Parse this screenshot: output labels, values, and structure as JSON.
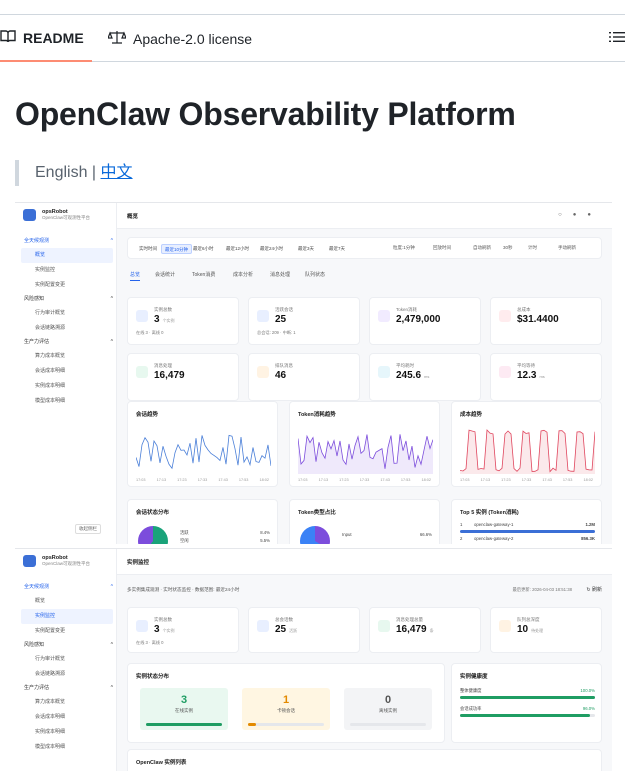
{
  "tabs": {
    "readme": "README",
    "license": "Apache-2.0 license"
  },
  "title": "OpenClaw Observability Platform",
  "lang": {
    "english": "English |",
    "chinese": "中文"
  },
  "app": {
    "logo_name": "opsRobot",
    "logo_sub": "OpenClaw可观测性平台",
    "nav": {
      "group1": "全天候观测",
      "item_overview": "概览",
      "item_instance": "实例监控",
      "item_config": "实例配置变更",
      "group2": "风险感知",
      "item_audit": "行为审计概览",
      "item_session_trace": "会话链路溯源",
      "group3": "生产力评估",
      "item_cost_overview": "算力成本概览",
      "item_session_cost": "会话成本明细",
      "item_instance_cost": "实例成本明细",
      "item_model_cost": "模型成本明细",
      "collapse": "收起侧栏"
    },
    "screen1": {
      "page_title": "概览",
      "time_buttons": [
        "实时时间",
        "最近10分钟",
        "最近6小时",
        "最近12小时",
        "最近24小时",
        "最近3天",
        "最近7天"
      ],
      "time_right": [
        "粒度:1分钟",
        "回放时间",
        "自动刷新",
        "30秒",
        "计时",
        "手动刷新"
      ],
      "subtabs": [
        "总览",
        "会话统计",
        "Token消费",
        "成本分析",
        "消息处理",
        "队列状态"
      ],
      "kpis": [
        {
          "label": "实例总数",
          "value": "3",
          "unit": "个实例",
          "sub": "在线 3 · 离线 0",
          "color": "#e8efff"
        },
        {
          "label": "活跃会话",
          "value": "25",
          "unit": "",
          "sub": "总会话: 209 · 中断: 1",
          "color": "#e8efff"
        },
        {
          "label": "Token消耗",
          "value": "2,479,000",
          "unit": "",
          "sub": "",
          "color": "#f1ebff"
        },
        {
          "label": "总成本",
          "value": "$31.4400",
          "unit": "",
          "sub": "",
          "color": "#ffecee"
        },
        {
          "label": "消息处理",
          "value": "16,479",
          "unit": "",
          "sub": "",
          "color": "#e7f8ef"
        },
        {
          "label": "排队消息",
          "value": "46",
          "unit": "",
          "sub": "",
          "color": "#fff3e3"
        },
        {
          "label": "平均耗时",
          "value": "245.6",
          "unit": "ms",
          "sub": "",
          "color": "#e6f6fb"
        },
        {
          "label": "平均等待",
          "value": "12.3",
          "unit": "ms",
          "sub": "",
          "color": "#fdeaf3"
        }
      ],
      "charts": [
        {
          "title": "会话趋势",
          "color": "#4a7fd8"
        },
        {
          "title": "Token消耗趋势",
          "color": "#7c4ddc"
        },
        {
          "title": "成本趋势",
          "color": "#e0465e"
        }
      ],
      "x_ticks": [
        "17:03",
        "17:13",
        "17:23",
        "17:33",
        "17:43",
        "17:53",
        "18:02"
      ],
      "bottom": {
        "status_title": "会话状态分布",
        "status_legend": [
          {
            "label": "活跃",
            "pct": "8.4%"
          },
          {
            "label": "空闲",
            "pct": "5.5%"
          }
        ],
        "token_title": "Token类型占比",
        "token_legend": [
          {
            "label": "Input",
            "pct": "66.6%"
          }
        ],
        "top5_title": "Top 5 实例 (Token消耗)",
        "top5": [
          {
            "rank": "1",
            "name": "openclaw-gateway-1",
            "value": "1.2M"
          },
          {
            "rank": "2",
            "name": "openclaw-gateway-2",
            "value": "856.3K"
          }
        ]
      }
    },
    "screen2": {
      "page_title": "实例监控",
      "desc": "多实例集成观测 · 实时状态监控 · 数据范围: 最近24小时",
      "updated": "最后更新: 2026-04-03 18:51:38",
      "refresh": "刷新",
      "kpis": [
        {
          "label": "实例总数",
          "value": "3",
          "unit": "个实例",
          "sub": "在线 3 · 离线 0",
          "color": "#e8efff"
        },
        {
          "label": "总会话数",
          "value": "25",
          "unit": "活跃",
          "sub": "",
          "color": "#e8efff"
        },
        {
          "label": "消息处理总量",
          "value": "16,479",
          "unit": "条",
          "sub": "",
          "color": "#e7f8ef"
        },
        {
          "label": "队列总深度",
          "value": "10",
          "unit": "待处理",
          "sub": "",
          "color": "#fff3e3"
        }
      ],
      "status_title": "实例状态分布",
      "status": [
        {
          "value": "3",
          "label": "在线实例",
          "color": "#1f9d63",
          "bg": "#e9f8f0",
          "fill": 1.0
        },
        {
          "value": "1",
          "label": "卡顿会话",
          "color": "#e38a00",
          "bg": "#fff6e2",
          "fill": 0.1
        },
        {
          "value": "0",
          "label": "离线实例",
          "color": "#555555",
          "bg": "#f3f4f6",
          "fill": 0.0
        }
      ],
      "health_title": "实例健康度",
      "health": [
        {
          "label": "整体健康度",
          "value": "100.0%",
          "fill": 1.0
        },
        {
          "label": "会话成功率",
          "value": "96.0%",
          "fill": 0.96
        }
      ],
      "list_title": "OpenClaw 实例列表"
    }
  }
}
